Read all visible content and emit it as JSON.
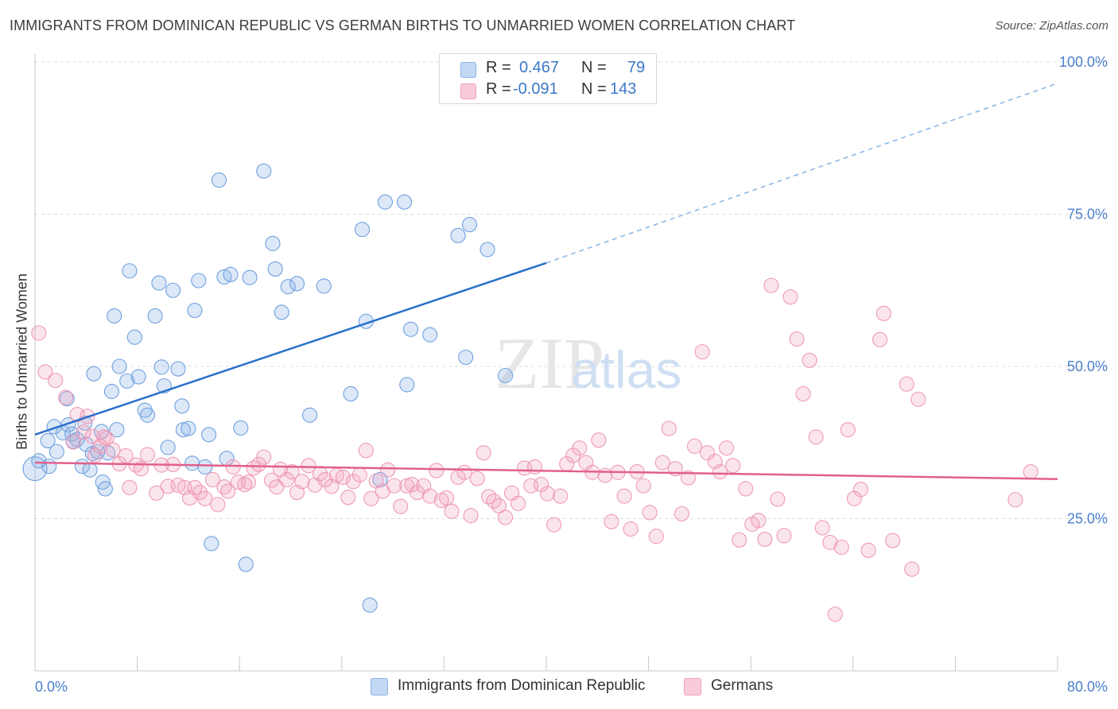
{
  "title": "IMMIGRANTS FROM DOMINICAN REPUBLIC VS GERMAN BIRTHS TO UNMARRIED WOMEN CORRELATION CHART",
  "source": "Source: ZipAtlas.com",
  "watermark": {
    "zip": "ZIP",
    "atlas": "atlas"
  },
  "legend": {
    "r_label": "R =",
    "n_label": "N =",
    "series1": {
      "r": "0.467",
      "n": "79"
    },
    "series2": {
      "r": "-0.091",
      "n": "143"
    }
  },
  "chart_data": {
    "type": "scatter",
    "title": "IMMIGRANTS FROM DOMINICAN REPUBLIC VS GERMAN BIRTHS TO UNMARRIED WOMEN CORRELATION CHART",
    "xlabel": "",
    "ylabel": "Births to Unmarried Women",
    "xlim": [
      0,
      80
    ],
    "ylim": [
      0,
      100
    ],
    "x_tick_labels": [
      "0.0%",
      "80.0%"
    ],
    "y_ticks": [
      25,
      50,
      75,
      100
    ],
    "y_tick_labels": [
      "25.0%",
      "50.0%",
      "75.0%",
      "100.0%"
    ],
    "colors": {
      "series1": "#8ab4e8",
      "series1_line": "#2a6fcc",
      "series2": "#f2a2bc",
      "series2_line": "#e0608c",
      "tick_label": "#4a7fcc"
    },
    "series": [
      {
        "name": "Immigrants from Dominican Republic",
        "color": "#8ab4e8",
        "trend": {
          "x": [
            0,
            40
          ],
          "y": [
            38.8,
            67.0
          ],
          "extended_to": [
            80,
            96.5
          ]
        },
        "points": [
          [
            0.0,
            33.2
          ],
          [
            0.3,
            34.5
          ],
          [
            1.0,
            37.8
          ],
          [
            1.1,
            33.6
          ],
          [
            1.5,
            40.1
          ],
          [
            1.7,
            36.0
          ],
          [
            2.2,
            39.1
          ],
          [
            2.5,
            44.7
          ],
          [
            2.6,
            40.4
          ],
          [
            2.9,
            38.9
          ],
          [
            3.0,
            37.7
          ],
          [
            3.3,
            38.0
          ],
          [
            3.7,
            33.6
          ],
          [
            3.9,
            40.7
          ],
          [
            4.0,
            37.2
          ],
          [
            4.3,
            33.0
          ],
          [
            4.5,
            35.7
          ],
          [
            4.6,
            48.8
          ],
          [
            5.2,
            39.3
          ],
          [
            5.3,
            31.0
          ],
          [
            5.5,
            29.9
          ],
          [
            5.7,
            35.8
          ],
          [
            6.0,
            45.9
          ],
          [
            6.2,
            58.3
          ],
          [
            6.4,
            39.6
          ],
          [
            6.6,
            50.0
          ],
          [
            7.2,
            47.6
          ],
          [
            7.4,
            65.7
          ],
          [
            7.8,
            54.8
          ],
          [
            8.1,
            48.3
          ],
          [
            8.6,
            42.8
          ],
          [
            8.8,
            42.0
          ],
          [
            9.4,
            58.3
          ],
          [
            9.7,
            63.7
          ],
          [
            9.9,
            49.9
          ],
          [
            10.1,
            46.8
          ],
          [
            10.4,
            36.7
          ],
          [
            10.8,
            62.5
          ],
          [
            11.2,
            49.6
          ],
          [
            11.5,
            43.5
          ],
          [
            11.6,
            39.6
          ],
          [
            12.0,
            39.8
          ],
          [
            12.3,
            34.1
          ],
          [
            12.5,
            59.2
          ],
          [
            12.8,
            64.1
          ],
          [
            13.3,
            33.5
          ],
          [
            13.6,
            38.8
          ],
          [
            13.8,
            20.9
          ],
          [
            14.4,
            80.6
          ],
          [
            14.8,
            64.7
          ],
          [
            15.0,
            34.9
          ],
          [
            15.3,
            65.1
          ],
          [
            16.1,
            39.9
          ],
          [
            16.5,
            17.5
          ],
          [
            16.8,
            64.6
          ],
          [
            17.9,
            82.1
          ],
          [
            18.6,
            70.2
          ],
          [
            18.8,
            66.0
          ],
          [
            19.3,
            58.9
          ],
          [
            19.8,
            63.1
          ],
          [
            20.5,
            63.6
          ],
          [
            21.5,
            42.0
          ],
          [
            22.6,
            63.2
          ],
          [
            24.7,
            45.5
          ],
          [
            25.6,
            72.5
          ],
          [
            25.9,
            57.4
          ],
          [
            26.2,
            10.8
          ],
          [
            27.0,
            31.4
          ],
          [
            27.4,
            77.0
          ],
          [
            28.9,
            77.0
          ],
          [
            29.1,
            47.0
          ],
          [
            29.4,
            56.1
          ],
          [
            30.9,
            55.2
          ],
          [
            33.1,
            71.5
          ],
          [
            33.7,
            51.5
          ],
          [
            34.0,
            73.3
          ],
          [
            35.4,
            69.2
          ],
          [
            36.8,
            48.5
          ],
          [
            4.9,
            36.0
          ]
        ]
      },
      {
        "name": "Germans",
        "color": "#f2a2bc",
        "trend": {
          "x": [
            0,
            80
          ],
          "y": [
            34.2,
            31.5
          ]
        },
        "points": [
          [
            0.3,
            55.5
          ],
          [
            0.8,
            49.1
          ],
          [
            1.6,
            47.7
          ],
          [
            2.4,
            44.9
          ],
          [
            3.0,
            37.6
          ],
          [
            3.3,
            42.1
          ],
          [
            3.8,
            39.2
          ],
          [
            4.1,
            41.8
          ],
          [
            4.5,
            38.5
          ],
          [
            4.7,
            35.4
          ],
          [
            5.1,
            36.9
          ],
          [
            5.4,
            38.4
          ],
          [
            5.6,
            38.2
          ],
          [
            6.1,
            36.3
          ],
          [
            6.6,
            34.0
          ],
          [
            7.1,
            35.3
          ],
          [
            7.4,
            30.1
          ],
          [
            7.9,
            33.8
          ],
          [
            8.3,
            33.2
          ],
          [
            8.8,
            35.5
          ],
          [
            9.5,
            29.2
          ],
          [
            9.9,
            33.8
          ],
          [
            10.4,
            30.3
          ],
          [
            10.8,
            33.9
          ],
          [
            11.2,
            30.5
          ],
          [
            11.7,
            30.1
          ],
          [
            12.1,
            28.4
          ],
          [
            12.5,
            30.1
          ],
          [
            12.9,
            29.3
          ],
          [
            13.3,
            28.3
          ],
          [
            13.9,
            31.4
          ],
          [
            14.3,
            27.3
          ],
          [
            14.8,
            30.2
          ],
          [
            15.1,
            29.5
          ],
          [
            15.5,
            33.5
          ],
          [
            15.9,
            31.0
          ],
          [
            16.4,
            30.6
          ],
          [
            16.7,
            31.0
          ],
          [
            17.1,
            33.3
          ],
          [
            17.5,
            33.9
          ],
          [
            17.9,
            35.1
          ],
          [
            18.5,
            31.3
          ],
          [
            18.9,
            30.2
          ],
          [
            19.2,
            33.1
          ],
          [
            19.7,
            31.4
          ],
          [
            20.1,
            32.7
          ],
          [
            20.5,
            29.3
          ],
          [
            20.9,
            31.1
          ],
          [
            21.4,
            33.7
          ],
          [
            21.9,
            30.5
          ],
          [
            22.3,
            32.4
          ],
          [
            22.7,
            31.4
          ],
          [
            23.2,
            30.3
          ],
          [
            23.6,
            32.1
          ],
          [
            24.1,
            31.8
          ],
          [
            24.5,
            28.5
          ],
          [
            24.9,
            31.1
          ],
          [
            25.4,
            32.2
          ],
          [
            25.9,
            36.2
          ],
          [
            26.3,
            28.3
          ],
          [
            26.7,
            31.2
          ],
          [
            27.2,
            29.5
          ],
          [
            27.6,
            33.0
          ],
          [
            28.1,
            30.4
          ],
          [
            28.6,
            27.0
          ],
          [
            29.1,
            30.4
          ],
          [
            29.5,
            30.6
          ],
          [
            29.9,
            29.3
          ],
          [
            30.4,
            30.4
          ],
          [
            30.9,
            28.7
          ],
          [
            31.4,
            32.9
          ],
          [
            31.8,
            28.0
          ],
          [
            32.2,
            28.4
          ],
          [
            32.6,
            26.2
          ],
          [
            33.1,
            31.8
          ],
          [
            33.6,
            32.6
          ],
          [
            34.1,
            25.5
          ],
          [
            34.6,
            31.6
          ],
          [
            35.1,
            35.8
          ],
          [
            35.5,
            28.6
          ],
          [
            35.9,
            27.9
          ],
          [
            36.3,
            27.1
          ],
          [
            36.8,
            25.2
          ],
          [
            37.3,
            29.2
          ],
          [
            37.8,
            27.5
          ],
          [
            38.3,
            33.3
          ],
          [
            38.8,
            30.4
          ],
          [
            39.1,
            33.5
          ],
          [
            39.6,
            30.6
          ],
          [
            40.1,
            29.1
          ],
          [
            40.6,
            24.0
          ],
          [
            41.1,
            28.7
          ],
          [
            41.6,
            34.0
          ],
          [
            42.1,
            35.4
          ],
          [
            42.6,
            36.6
          ],
          [
            43.1,
            34.2
          ],
          [
            43.6,
            32.6
          ],
          [
            44.1,
            37.9
          ],
          [
            44.6,
            32.1
          ],
          [
            45.1,
            24.5
          ],
          [
            45.6,
            32.6
          ],
          [
            46.1,
            28.7
          ],
          [
            46.6,
            23.3
          ],
          [
            47.1,
            32.7
          ],
          [
            47.6,
            30.4
          ],
          [
            48.1,
            26.0
          ],
          [
            48.6,
            22.1
          ],
          [
            49.1,
            34.2
          ],
          [
            49.6,
            39.8
          ],
          [
            50.1,
            33.2
          ],
          [
            50.6,
            25.8
          ],
          [
            51.1,
            31.7
          ],
          [
            51.6,
            36.9
          ],
          [
            52.2,
            52.4
          ],
          [
            52.6,
            35.8
          ],
          [
            53.2,
            34.4
          ],
          [
            53.6,
            32.7
          ],
          [
            54.1,
            36.6
          ],
          [
            54.6,
            33.7
          ],
          [
            55.1,
            21.5
          ],
          [
            55.6,
            29.9
          ],
          [
            56.1,
            24.1
          ],
          [
            56.6,
            24.7
          ],
          [
            57.1,
            21.6
          ],
          [
            57.6,
            63.3
          ],
          [
            58.1,
            28.2
          ],
          [
            58.6,
            22.2
          ],
          [
            59.1,
            61.4
          ],
          [
            59.6,
            54.5
          ],
          [
            60.1,
            45.5
          ],
          [
            60.6,
            51.0
          ],
          [
            61.1,
            38.4
          ],
          [
            61.6,
            23.5
          ],
          [
            62.2,
            21.1
          ],
          [
            62.6,
            9.3
          ],
          [
            63.1,
            20.3
          ],
          [
            63.6,
            39.6
          ],
          [
            64.1,
            28.3
          ],
          [
            64.6,
            29.8
          ],
          [
            65.2,
            19.8
          ],
          [
            66.1,
            54.4
          ],
          [
            66.4,
            58.7
          ],
          [
            67.1,
            21.4
          ],
          [
            68.2,
            47.1
          ],
          [
            68.6,
            16.7
          ],
          [
            69.1,
            44.6
          ],
          [
            76.7,
            28.1
          ],
          [
            77.9,
            32.7
          ]
        ]
      }
    ],
    "legend_entries": [
      "Immigrants from Dominican Republic",
      "Germans"
    ]
  }
}
